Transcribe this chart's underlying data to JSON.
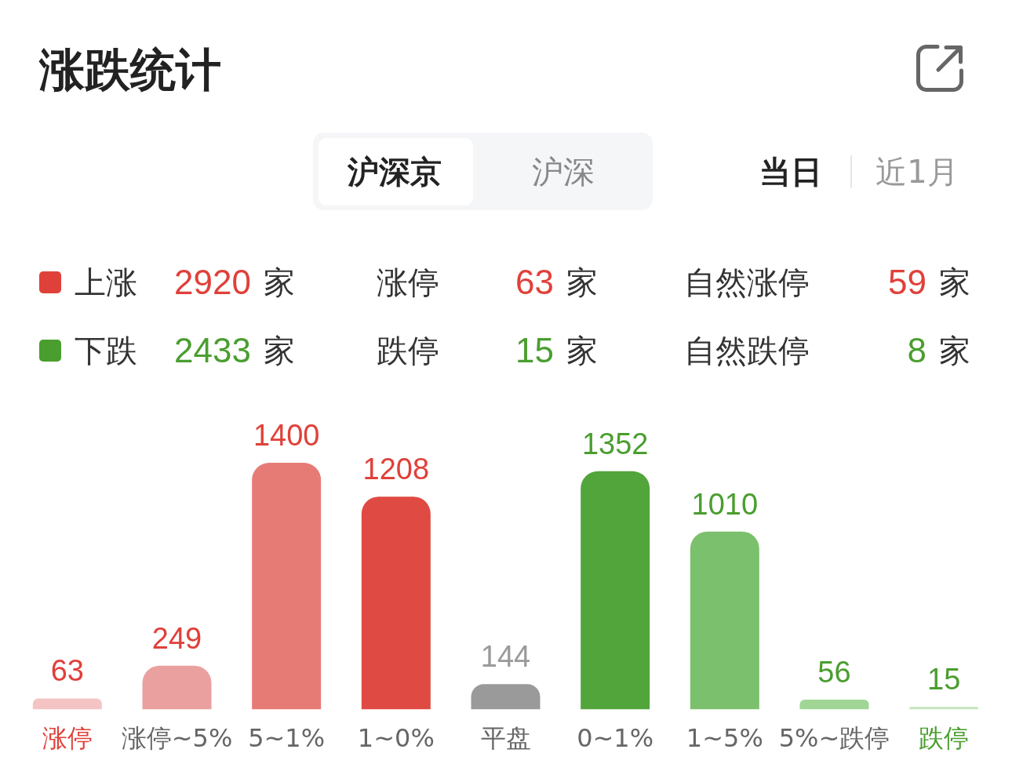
{
  "chart_data": {
    "type": "bar",
    "title": "涨跌统计",
    "categories": [
      "涨停",
      "涨停~5%",
      "5~1%",
      "1~0%",
      "平盘",
      "0~1%",
      "1~5%",
      "5%~跌停",
      "跌停"
    ],
    "series": [
      {
        "name": "上涨",
        "color": "#e0403a",
        "values": [
          63,
          249,
          1400,
          1208,
          null,
          null,
          null,
          null,
          null
        ],
        "colors": [
          "#f4c4c4",
          "#eaa09f",
          "#e67b76",
          "#df4a42",
          null,
          null,
          null,
          null,
          null
        ]
      },
      {
        "color": "#9a9a9a",
        "values": [
          null,
          null,
          null,
          null,
          144,
          null,
          null,
          null,
          null
        ],
        "colors": [
          null,
          null,
          null,
          null,
          "#9a9a9a",
          null,
          null,
          null,
          null
        ]
      },
      {
        "name": "下跌",
        "color": "#4a9e2f",
        "values": [
          null,
          null,
          null,
          null,
          null,
          1352,
          1010,
          56,
          15
        ],
        "colors": [
          null,
          null,
          null,
          null,
          null,
          "#52a53a",
          "#7bc06d",
          "#a0d595",
          "#c5e5bd"
        ]
      }
    ],
    "data_labels": true,
    "legend": "top left",
    "annotations": [
      "沪深京",
      "沪深",
      "当日",
      "近1月",
      "2920",
      "家",
      "涨停",
      "63",
      "家",
      "自然涨停",
      "59",
      "家",
      "2433",
      "家",
      "跌停",
      "15",
      "家",
      "自然跌停",
      "8",
      "家"
    ]
  }
}
